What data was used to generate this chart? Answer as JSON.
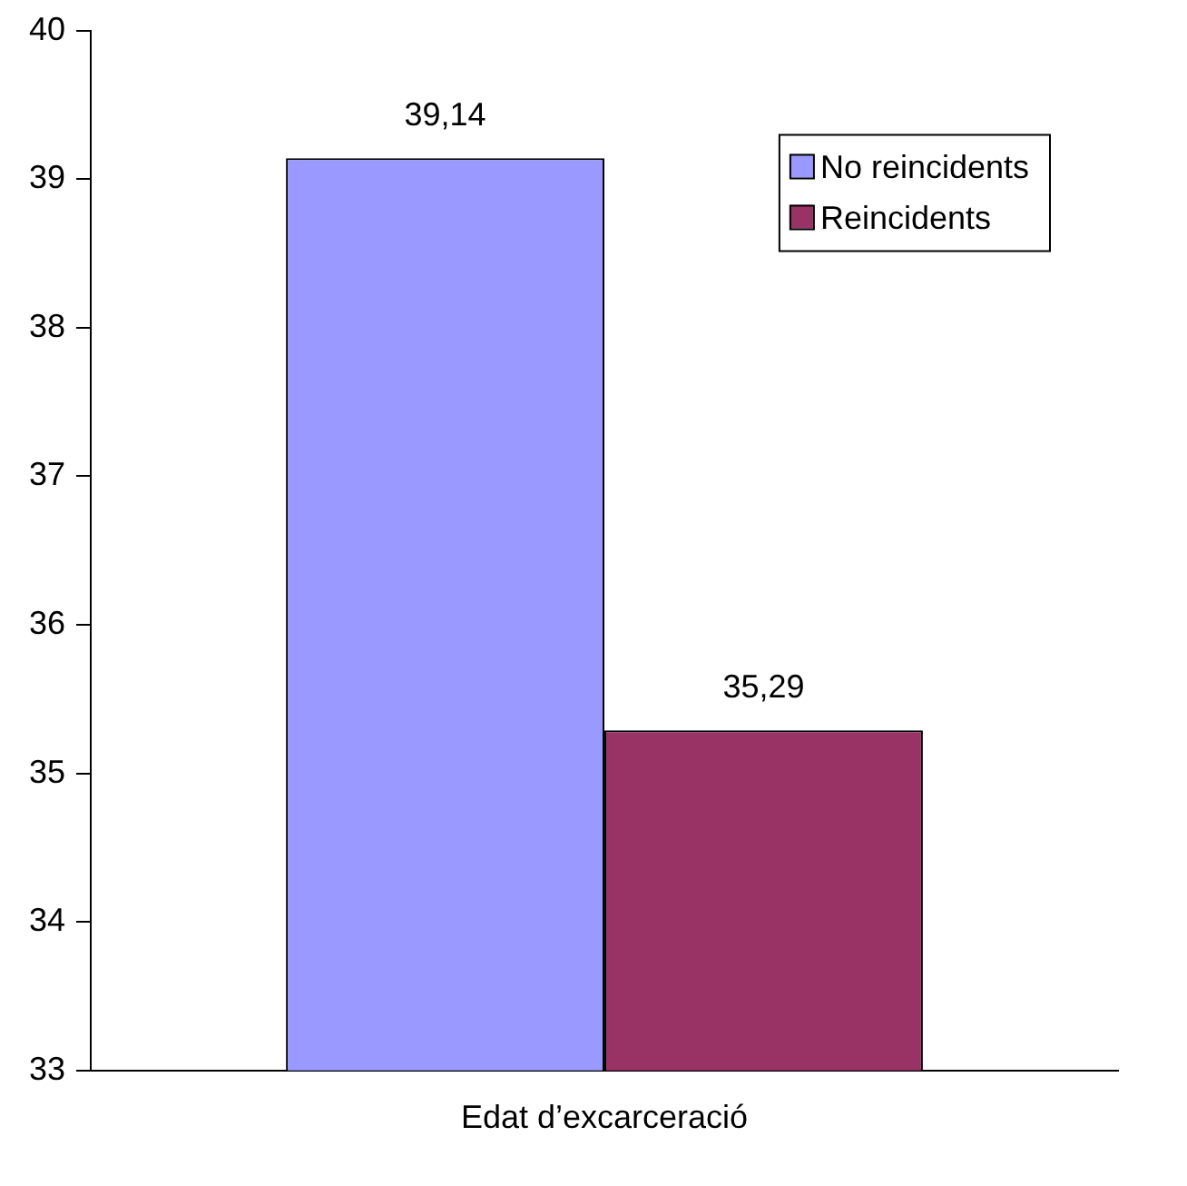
{
  "chart_data": {
    "type": "bar",
    "categories": [
      "Edat d’excarceració"
    ],
    "series": [
      {
        "name": "No reincidents",
        "color": "#9999ff",
        "values": [
          39.14
        ],
        "value_labels": [
          "39,14"
        ]
      },
      {
        "name": "Reincidents",
        "color": "#993366",
        "values": [
          35.29
        ],
        "value_labels": [
          "35,29"
        ]
      }
    ],
    "ylim": [
      33,
      40
    ],
    "yticks": [
      33,
      34,
      35,
      36,
      37,
      38,
      39,
      40
    ],
    "grid": false,
    "legend": "top right"
  }
}
